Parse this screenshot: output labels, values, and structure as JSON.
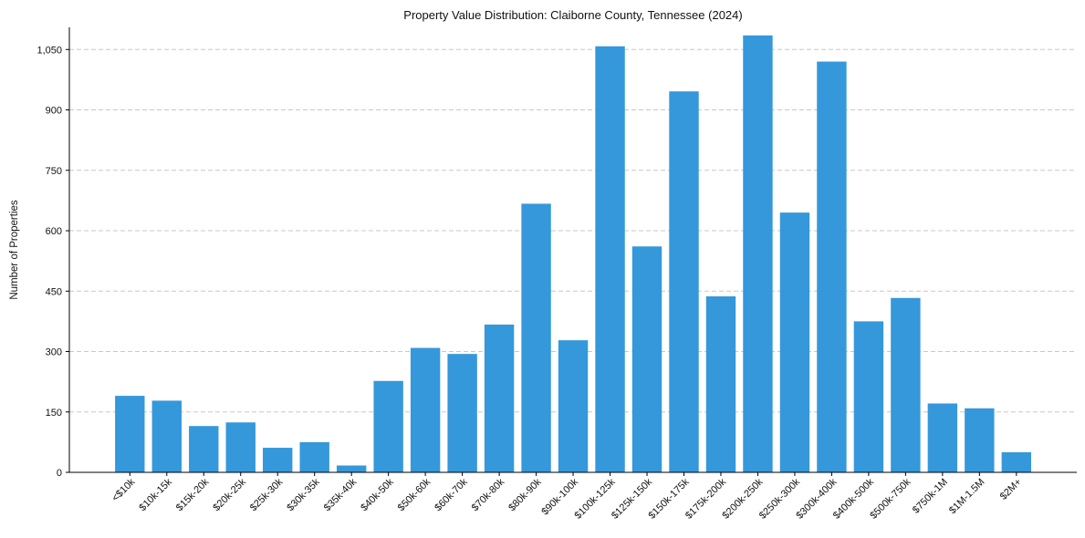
{
  "chart_data": {
    "type": "bar",
    "title": "Property Value Distribution: Claiborne County, Tennessee (2024)",
    "xlabel": "",
    "ylabel": "Number of Properties",
    "ylim": [
      0,
      1105
    ],
    "yticks": [
      0,
      150,
      300,
      450,
      600,
      750,
      900,
      1050
    ],
    "ytick_labels": [
      "0",
      "150",
      "300",
      "450",
      "600",
      "750",
      "900",
      "1,050"
    ],
    "grid": "y-dashed",
    "bar_color": "#3498db",
    "categories": [
      "<$10k",
      "$10k-15k",
      "$15k-20k",
      "$20k-25k",
      "$25k-30k",
      "$30k-35k",
      "$35k-40k",
      "$40k-50k",
      "$50k-60k",
      "$60k-70k",
      "$70k-80k",
      "$80k-90k",
      "$90k-100k",
      "$100k-125k",
      "$125k-150k",
      "$150k-175k",
      "$175k-200k",
      "$200k-250k",
      "$250k-300k",
      "$300k-400k",
      "$400k-500k",
      "$500k-750k",
      "$750k-1M",
      "$1M-1.5M",
      "$2M+"
    ],
    "values": [
      190,
      178,
      115,
      124,
      61,
      75,
      17,
      227,
      309,
      294,
      367,
      667,
      328,
      1058,
      561,
      946,
      437,
      1085,
      645,
      1020,
      375,
      433,
      171,
      159,
      50
    ]
  }
}
